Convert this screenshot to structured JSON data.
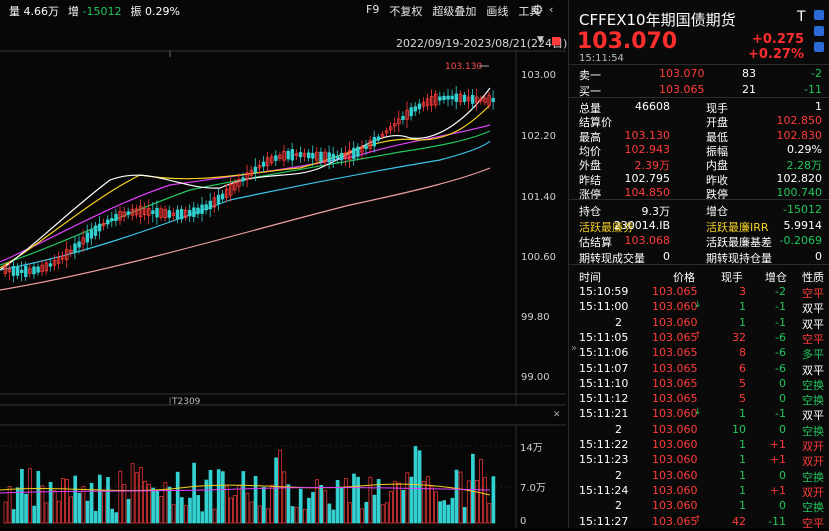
{
  "topbar": {
    "vol_label": "量",
    "vol_value": "4.66万",
    "oi_label": "增",
    "oi_value": "-15012",
    "amp_label": "振",
    "amp_value": "0.29%",
    "menu": [
      "F9",
      "不复权",
      "超级叠加",
      "画线",
      "工具"
    ]
  },
  "chart": {
    "range_text": "2022/09/19-2023/08/21(224日)",
    "max_price_label": "103.130",
    "contract_label": "T2309",
    "y_ticks": [
      "103.00",
      "102.20",
      "101.40",
      "100.60",
      "99.80",
      "99.00"
    ],
    "vol_ticks": [
      "14万",
      "7.0万",
      "0"
    ],
    "colors": {
      "up": "#ff3b3b",
      "down": "#33d1d1",
      "ma5": "#ffffff",
      "ma10": "#f5d020",
      "ma20": "#e040fb",
      "ma30": "#22c55e",
      "ma60": "#3bc5e8",
      "ma120": "#f0a0a0"
    }
  },
  "quote": {
    "title": "CFFEX10年期国债期货",
    "title_right": "T",
    "price": "103.070",
    "change": "+0.275",
    "change_pct": "+0.27%",
    "time": "15:11:54",
    "ask": {
      "label": "卖一",
      "price": "103.070",
      "qty": "83",
      "chg": "-2"
    },
    "bid": {
      "label": "买一",
      "price": "103.065",
      "qty": "21",
      "chg": "-11"
    },
    "stats": [
      [
        "总量",
        "46608",
        "现手",
        "1"
      ],
      [
        "结算价",
        "",
        "开盘",
        "102.850"
      ],
      [
        "最高",
        "103.130",
        "最低",
        "102.830"
      ],
      [
        "均价",
        "102.943",
        "振幅",
        "0.29%"
      ],
      [
        "外盘",
        "2.39万",
        "内盘",
        "2.28万"
      ],
      [
        "昨结",
        "102.795",
        "昨收",
        "102.820"
      ],
      [
        "涨停",
        "104.850",
        "跌停",
        "100.740"
      ]
    ],
    "extra": [
      [
        "持仓",
        "9.3万",
        "增仓",
        "-15012"
      ],
      [
        "活跃最廉券",
        "230014.IB",
        "活跃最廉IRR",
        "5.9914"
      ],
      [
        "估结算",
        "103.068",
        "活跃最廉基差",
        "-0.2069"
      ],
      [
        "期转现成交量",
        "0",
        "期转现持仓量",
        "0"
      ]
    ]
  },
  "ticks": {
    "headers": [
      "时间",
      "价格",
      "现手",
      "增仓",
      "性质"
    ],
    "rows": [
      [
        "15:10:59",
        "103.065",
        "",
        "3",
        "-2",
        "空平"
      ],
      [
        "15:11:00",
        "103.060",
        "↓",
        "1",
        "-1",
        "双平"
      ],
      [
        "2",
        "103.060",
        "",
        "1",
        "-1",
        "双平"
      ],
      [
        "15:11:05",
        "103.065",
        "↑",
        "32",
        "-6",
        "空平"
      ],
      [
        "15:11:06",
        "103.065",
        "",
        "8",
        "-6",
        "多平"
      ],
      [
        "15:11:07",
        "103.065",
        "",
        "6",
        "-6",
        "双平"
      ],
      [
        "15:11:10",
        "103.065",
        "",
        "5",
        "0",
        "空换"
      ],
      [
        "15:11:12",
        "103.065",
        "",
        "5",
        "0",
        "空换"
      ],
      [
        "15:11:21",
        "103.060",
        "↓",
        "1",
        "-1",
        "双平"
      ],
      [
        "2",
        "103.060",
        "",
        "10",
        "0",
        "空换"
      ],
      [
        "15:11:22",
        "103.060",
        "",
        "1",
        "+1",
        "双开"
      ],
      [
        "15:11:23",
        "103.060",
        "",
        "1",
        "+1",
        "双开"
      ],
      [
        "2",
        "103.060",
        "",
        "1",
        "0",
        "空换"
      ],
      [
        "15:11:24",
        "103.060",
        "",
        "1",
        "+1",
        "双开"
      ],
      [
        "2",
        "103.060",
        "",
        "1",
        "0",
        "空换"
      ],
      [
        "15:11:27",
        "103.065",
        "↑",
        "42",
        "-11",
        "空平"
      ]
    ]
  }
}
